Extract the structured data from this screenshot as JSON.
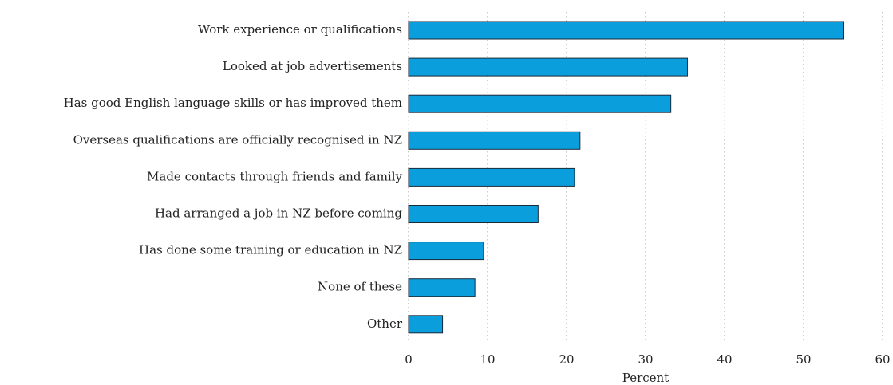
{
  "chart_data": {
    "type": "bar",
    "orientation": "horizontal",
    "categories": [
      "Work experience or qualifications",
      "Looked at job advertisements",
      "Has good English language skills or has improved them",
      "Overseas qualifications are officially recognised in NZ",
      "Made contacts through friends and family",
      "Had arranged a job in NZ before coming",
      "Has done some training or education in NZ",
      "None of these",
      "Other"
    ],
    "values": [
      55,
      35.3,
      33.2,
      21.7,
      21.0,
      16.4,
      9.5,
      8.4,
      4.3
    ],
    "color": "#0a9fdc",
    "xlabel": "Percent",
    "xlim": [
      0,
      60
    ],
    "xticks": [
      0,
      10,
      20,
      30,
      40,
      50,
      60
    ],
    "grid": true
  }
}
